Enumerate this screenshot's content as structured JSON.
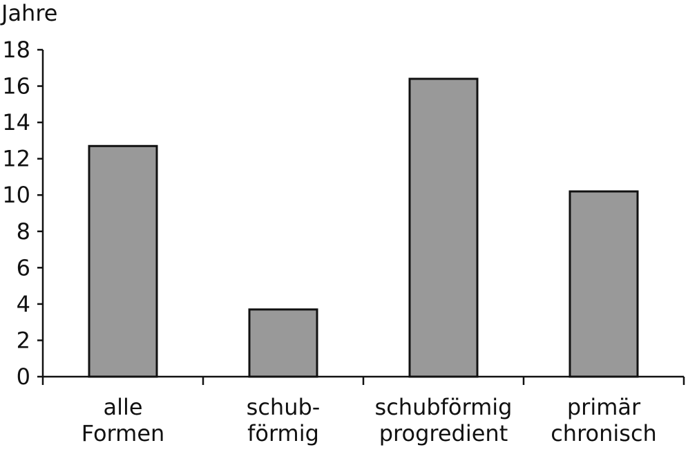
{
  "chart_data": {
    "type": "bar",
    "ylabel": "Jahre",
    "xlabel": "",
    "ylim": [
      0,
      18
    ],
    "yticks": [
      0,
      2,
      4,
      6,
      8,
      10,
      12,
      14,
      16,
      18
    ],
    "categories": [
      [
        "alle",
        "Formen"
      ],
      [
        "schub-",
        "förmig"
      ],
      [
        "schubförmig",
        "progredient"
      ],
      [
        "primär",
        "chronisch"
      ]
    ],
    "values": [
      12.7,
      3.7,
      16.4,
      10.2
    ],
    "grid": false,
    "legend": "none",
    "bar_color": "#999999",
    "bar_edge_color": "#111111"
  }
}
